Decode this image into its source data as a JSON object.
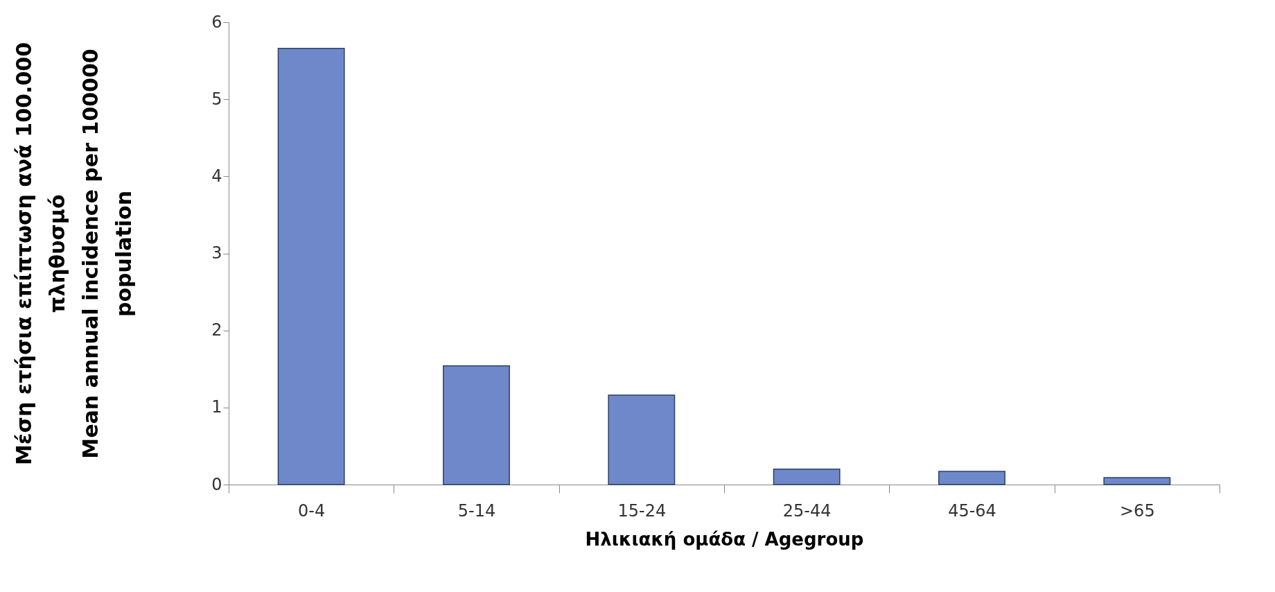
{
  "chart_data": {
    "type": "bar",
    "xlabel": "Ηλικιακή ομάδα / Agegroup",
    "ylabel": "Μέση ετήσια επίπτωση ανά 100.000\nπληθυσμό\nMean annual incidence per 100000\npopulation",
    "categories": [
      "0-4",
      "5-14",
      "15-24",
      "25-44",
      "45-64",
      ">65"
    ],
    "values": [
      5.66,
      1.54,
      1.16,
      0.2,
      0.17,
      0.09
    ],
    "color": "#6f88c9",
    "ylim": [
      0,
      6
    ],
    "yticks": [
      0,
      1,
      2,
      3,
      4,
      5,
      6
    ],
    "grid": false
  }
}
